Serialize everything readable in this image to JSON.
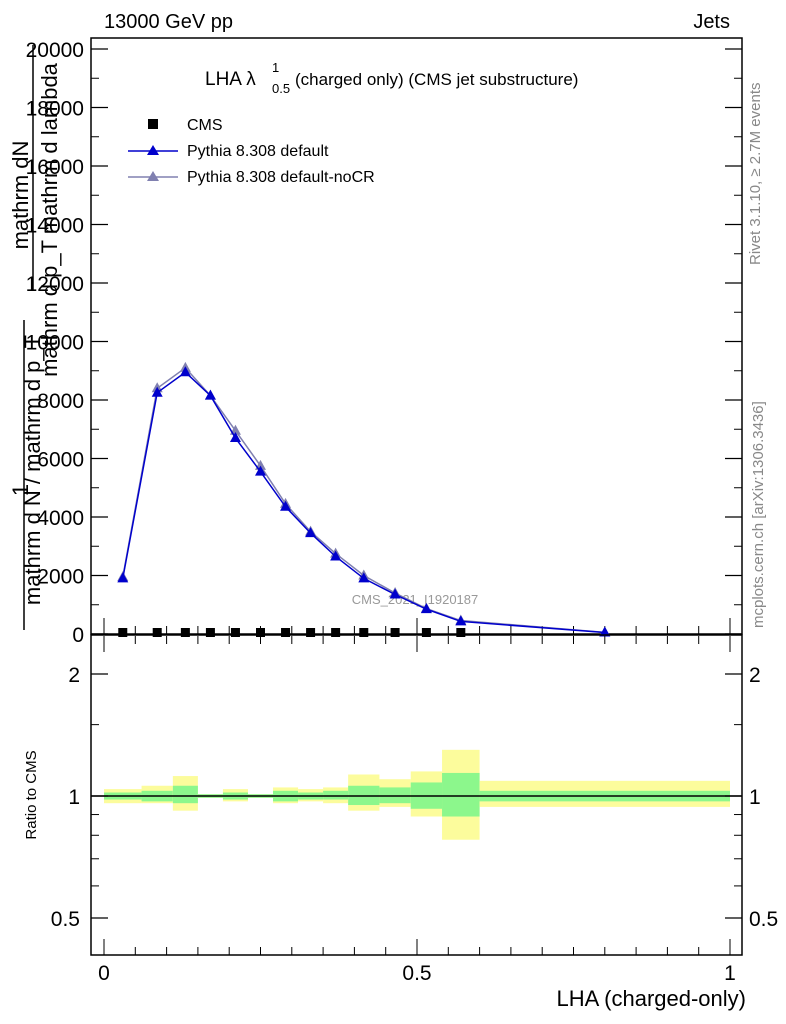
{
  "header": {
    "left": "13000 GeV pp",
    "right": "Jets"
  },
  "title": {
    "main": "LHA λ",
    "sup": "1",
    "sub": "0.5",
    "rest": " (charged only) (CMS jet substructure)"
  },
  "side_labels": {
    "rivet": "Rivet 3.1.10, ≥ 2.7M events",
    "mcplots": "mcplots.cern.ch [arXiv:1306.3436]"
  },
  "watermark": "CMS_2021_I1920187",
  "ylabel_main": {
    "one": "1",
    "numer1": "mathrm d²N",
    "denom1": "mathrm d p_T mathrm d lambda",
    "denom_line": "mathrm d N / mathrm d p_T",
    "numer_frac": "mathrm dN"
  },
  "ylabel_ratio": "Ratio to CMS",
  "xlabel": "LHA (charged-only)",
  "colors": {
    "cms": "#000000",
    "pythia_default": "#0000cc",
    "pythia_nocr": "#8080b0",
    "band_inner": "#8cf78c",
    "band_outer": "#fcfc9c"
  },
  "chart_data": [
    {
      "type": "line",
      "panel": "main",
      "ylim": [
        0,
        20000
      ],
      "xlim": [
        0,
        1
      ],
      "yticks": [
        0,
        2000,
        4000,
        6000,
        8000,
        10000,
        12000,
        14000,
        16000,
        18000,
        20000
      ],
      "ytick_labels": [
        "0",
        "2000",
        "4000",
        "6000",
        "8000",
        "10000",
        "12000",
        "14000",
        "16000",
        "18000",
        "20000"
      ],
      "legend_placement": "top-left",
      "series": [
        {
          "name": "CMS",
          "marker": "square",
          "x": [
            0.03,
            0.085,
            0.13,
            0.17,
            0.21,
            0.25,
            0.29,
            0.33,
            0.37,
            0.415,
            0.465,
            0.515,
            0.57
          ],
          "y": [
            0,
            0,
            0,
            0,
            0,
            0,
            0,
            0,
            0,
            0,
            0,
            0,
            0
          ]
        },
        {
          "name": "Pythia 8.308 default",
          "marker": "triangle",
          "x": [
            0.03,
            0.085,
            0.13,
            0.17,
            0.21,
            0.25,
            0.29,
            0.33,
            0.37,
            0.415,
            0.465,
            0.515,
            0.57,
            0.8
          ],
          "y": [
            1900,
            8250,
            8950,
            8150,
            6700,
            5550,
            4350,
            3450,
            2650,
            1900,
            1350,
            850,
            430,
            50
          ]
        },
        {
          "name": "Pythia 8.308 default-noCR",
          "marker": "triangle",
          "x": [
            0.03,
            0.085,
            0.13,
            0.17,
            0.21,
            0.25,
            0.29,
            0.33,
            0.37,
            0.415,
            0.465,
            0.515,
            0.57,
            0.8
          ],
          "y": [
            1950,
            8400,
            9100,
            8150,
            6950,
            5750,
            4450,
            3500,
            2750,
            2000,
            1400,
            870,
            460,
            55
          ]
        }
      ]
    },
    {
      "type": "area",
      "panel": "ratio",
      "ylabel": "Ratio to CMS",
      "xlabel": "LHA (charged-only)",
      "xlim": [
        0,
        1
      ],
      "ylim": [
        0.4,
        2.3
      ],
      "yscale": "log",
      "yticks": [
        0.5,
        1,
        2
      ],
      "ytick_labels": [
        "0.5",
        "1",
        "2"
      ],
      "xticks": [
        0,
        0.5,
        1
      ],
      "xtick_labels": [
        "0",
        "0.5",
        "1"
      ],
      "bin_edges": [
        0.0,
        0.06,
        0.11,
        0.15,
        0.19,
        0.23,
        0.27,
        0.31,
        0.35,
        0.39,
        0.44,
        0.49,
        0.54,
        0.6,
        1.0
      ],
      "inner_band_low": [
        0.98,
        0.97,
        0.96,
        0.99,
        0.98,
        0.99,
        0.97,
        0.98,
        0.98,
        0.95,
        0.96,
        0.93,
        0.89,
        0.97,
        0.96
      ],
      "inner_band_high": [
        1.02,
        1.03,
        1.06,
        1.01,
        1.02,
        1.01,
        1.03,
        1.02,
        1.03,
        1.06,
        1.05,
        1.08,
        1.14,
        1.03,
        1.05
      ],
      "outer_band_low": [
        0.96,
        0.96,
        0.92,
        0.99,
        0.97,
        0.99,
        0.96,
        0.97,
        0.96,
        0.92,
        0.94,
        0.89,
        0.78,
        0.94,
        0.92
      ],
      "outer_band_high": [
        1.04,
        1.06,
        1.12,
        1.01,
        1.04,
        1.01,
        1.05,
        1.04,
        1.05,
        1.13,
        1.1,
        1.15,
        1.3,
        1.09,
        1.12
      ]
    }
  ]
}
